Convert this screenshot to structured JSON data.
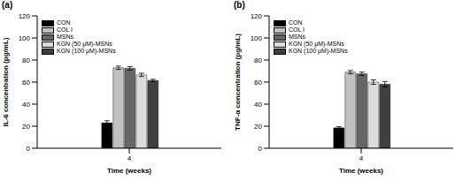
{
  "chart_data": [
    {
      "type": "bar",
      "title": "(a)",
      "x_label": "Time (weeks)",
      "y_label": "IL-6 concentration (pg/mL)",
      "categories": [
        "4"
      ],
      "series": [
        {
          "name": "CON",
          "color": "#000000",
          "values": [
            23
          ],
          "errors": [
            2
          ]
        },
        {
          "name": "COL I",
          "color": "#c0c0c0",
          "values": [
            73
          ],
          "errors": [
            1.5
          ]
        },
        {
          "name": "MSNs",
          "color": "#666666",
          "values": [
            72.5
          ],
          "errors": [
            1.5
          ]
        },
        {
          "name": "KGN (50 μM)-MSNs",
          "color": "#dcdcdc",
          "values": [
            66.5
          ],
          "errors": [
            1.5
          ]
        },
        {
          "name": "KGN (100 μM)-MSNs",
          "color": "#404040",
          "values": [
            61.5
          ],
          "errors": [
            1
          ]
        }
      ],
      "ylim": [
        0,
        120
      ],
      "yticks": [
        0,
        20,
        40,
        60,
        80,
        100,
        120
      ],
      "grid": false,
      "legend": "upper left"
    },
    {
      "type": "bar",
      "title": "(b)",
      "x_label": "Time (weeks)",
      "y_label": "TNF-α concentration (pg/mL)",
      "categories": [
        "4"
      ],
      "series": [
        {
          "name": "CON",
          "color": "#000000",
          "values": [
            18.5
          ],
          "errors": [
            1
          ]
        },
        {
          "name": "COL I",
          "color": "#c0c0c0",
          "values": [
            69
          ],
          "errors": [
            1.5
          ]
        },
        {
          "name": "MSNs",
          "color": "#666666",
          "values": [
            67.5
          ],
          "errors": [
            1.5
          ]
        },
        {
          "name": "KGN (50 μM)-MSNs",
          "color": "#dcdcdc",
          "values": [
            60
          ],
          "errors": [
            2
          ]
        },
        {
          "name": "KGN (100 μM)-MSNs",
          "color": "#404040",
          "values": [
            58
          ],
          "errors": [
            2.5
          ]
        }
      ],
      "ylim": [
        0,
        120
      ],
      "yticks": [
        0,
        20,
        40,
        60,
        80,
        100,
        120
      ],
      "grid": false,
      "legend": "upper left"
    }
  ]
}
